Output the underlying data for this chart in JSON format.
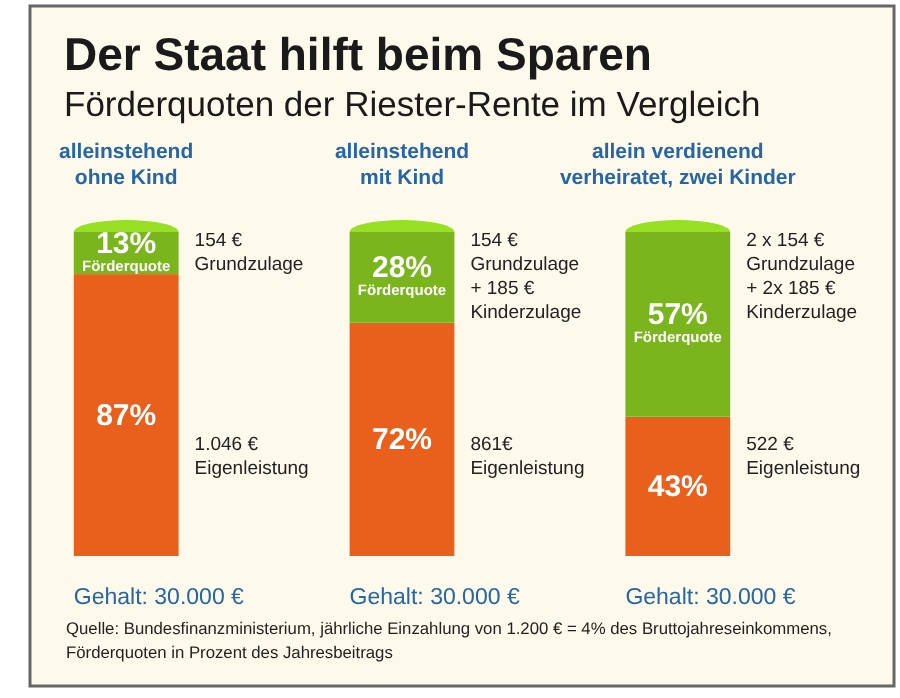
{
  "chart_data": {
    "type": "bar",
    "stacked": true,
    "title": "Der Staat hilft beim Sparen",
    "subtitle": "Förderquoten der Riester-Rente im Vergleich",
    "categories": [
      "alleinstehend\nohne Kind",
      "alleinstehend\nmit Kind",
      "allein verdienend\nverheiratet, zwei Kinder"
    ],
    "series": [
      {
        "color": "#e8601c",
        "values": [
          87,
          72,
          43
        ],
        "value_labels": [
          "87%",
          "72%",
          "43%"
        ]
      },
      {
        "name": "Förderquote",
        "color": "#7ab51d",
        "values": [
          13,
          28,
          57
        ],
        "value_labels": [
          "13%",
          "28%",
          "57%"
        ]
      }
    ],
    "annotations": [
      "154 €\nGrundzulage",
      "1.046 €\nEigenleistung",
      "154 €\nGrundzulage\n+ 185 €\nKinderzulage",
      "861€\nEigenleistung",
      "2 x 154 €\nGrundzulage\n+ 2x 185 €\nKinderzulage",
      "522 €\nEigenleistung",
      "Gehalt: 30.000 €",
      "Gehalt: 30.000 €",
      "Gehalt: 30.000 €",
      "Quelle: Bundesfinanzministerium, jährliche Einzahlung von 1.200 € = 4% des Bruttojahreseinkommens,\nFörderquoten in Prozent des Jahresbeitrags"
    ]
  }
}
